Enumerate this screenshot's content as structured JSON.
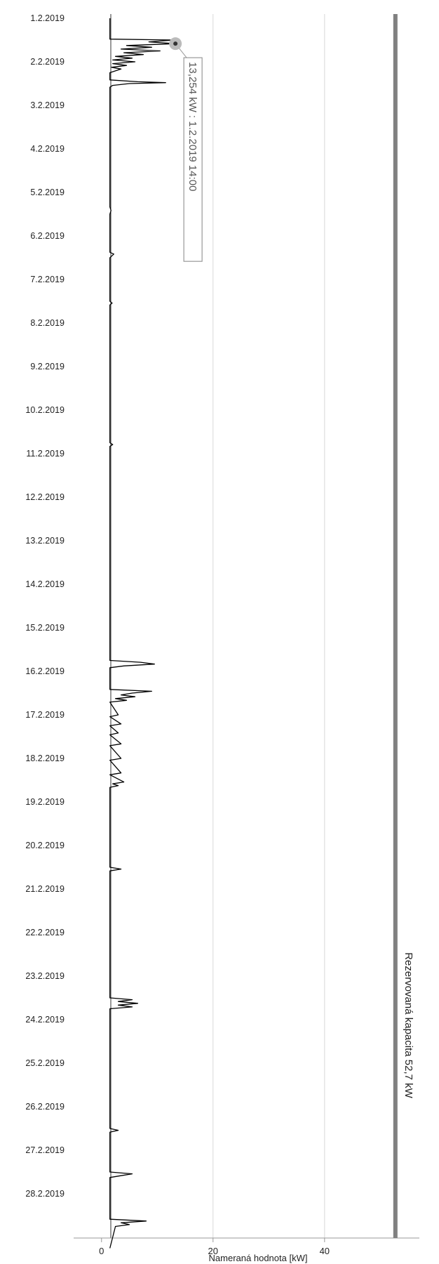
{
  "chart_data": {
    "type": "line",
    "orientation": "rotated (time on vertical axis, value on horizontal axis)",
    "title": "",
    "xlabel": "Nameraná hodnota [kW]",
    "x_ticks": [
      0,
      20,
      40
    ],
    "x_tick_labels": [
      "0",
      "20",
      "40"
    ],
    "xlim": [
      -5,
      57
    ],
    "date_ticks": [
      "1.2.2019",
      "2.2.2019",
      "3.2.2019",
      "4.2.2019",
      "5.2.2019",
      "6.2.2019",
      "7.2.2019",
      "8.2.2019",
      "9.2.2019",
      "10.2.2019",
      "11.2.2019",
      "12.2.2019",
      "13.2.2019",
      "14.2.2019",
      "15.2.2019",
      "16.2.2019",
      "17.2.2019",
      "18.2.2019",
      "19.2.2019",
      "20.2.2019",
      "21.2.2019",
      "22.2.2019",
      "23.2.2019",
      "24.2.2019",
      "25.2.2019",
      "26.2.2019",
      "27.2.2019",
      "28.2.2019"
    ],
    "date_range": [
      "1.2.2019 00:00",
      "1.3.2019 06:00"
    ],
    "grid": "vertical lines at x ticks",
    "reserved_capacity": {
      "value": 52.7,
      "label": "Rezervovaná kapacita 52,7 kW",
      "color": "#808080"
    },
    "tooltip": {
      "value": 13.254,
      "label": "13,254 kW : 1.2.2019 14:00"
    },
    "series": [
      {
        "color": "#000000",
        "points": [
          [
            "1.2.2019 00:00",
            1.5
          ],
          [
            "1.2.2019 11:30",
            1.5
          ],
          [
            "1.2.2019 12:00",
            13.0
          ],
          [
            "1.2.2019 13:00",
            8.5
          ],
          [
            "1.2.2019 14:00",
            13.254
          ],
          [
            "1.2.2019 15:00",
            4.5
          ],
          [
            "1.2.2019 16:00",
            9.0
          ],
          [
            "1.2.2019 17:00",
            3.5
          ],
          [
            "1.2.2019 18:00",
            10.5
          ],
          [
            "1.2.2019 19:00",
            4.0
          ],
          [
            "1.2.2019 20:00",
            7.5
          ],
          [
            "1.2.2019 21:00",
            2.5
          ],
          [
            "1.2.2019 22:00",
            5.5
          ],
          [
            "1.2.2019 23:00",
            2.0
          ],
          [
            "2.2.2019 00:00",
            6.0
          ],
          [
            "2.2.2019 01:00",
            2.0
          ],
          [
            "2.2.2019 02:00",
            4.5
          ],
          [
            "2.2.2019 03:00",
            1.8
          ],
          [
            "2.2.2019 04:00",
            3.5
          ],
          [
            "2.2.2019 06:00",
            1.5
          ],
          [
            "2.2.2019 10:00",
            1.5
          ],
          [
            "2.2.2019 11:00",
            6.5
          ],
          [
            "2.2.2019 11:30",
            11.5
          ],
          [
            "2.2.2019 12:00",
            5.0
          ],
          [
            "2.2.2019 13:00",
            2.0
          ],
          [
            "2.2.2019 14:00",
            1.5
          ],
          [
            "5.2.2019 08:00",
            1.5
          ],
          [
            "5.2.2019 10:00",
            1.7
          ],
          [
            "5.2.2019 12:00",
            1.5
          ],
          [
            "6.2.2019 09:00",
            1.5
          ],
          [
            "6.2.2019 10:00",
            2.2
          ],
          [
            "6.2.2019 12:00",
            1.5
          ],
          [
            "7.2.2019 12:00",
            1.5
          ],
          [
            "7.2.2019 13:00",
            1.9
          ],
          [
            "7.2.2019 14:00",
            1.5
          ],
          [
            "10.2.2019 18:00",
            1.5
          ],
          [
            "10.2.2019 19:00",
            2.0
          ],
          [
            "10.2.2019 20:00",
            1.5
          ],
          [
            "15.2.2019 18:00",
            1.5
          ],
          [
            "15.2.2019 19:00",
            7.0
          ],
          [
            "15.2.2019 20:00",
            9.5
          ],
          [
            "15.2.2019 21:00",
            4.0
          ],
          [
            "15.2.2019 22:00",
            1.5
          ],
          [
            "16.2.2019 10:00",
            1.5
          ],
          [
            "16.2.2019 11:00",
            9.0
          ],
          [
            "16.2.2019 12:00",
            5.5
          ],
          [
            "16.2.2019 13:00",
            3.5
          ],
          [
            "16.2.2019 14:00",
            6.0
          ],
          [
            "16.2.2019 15:00",
            2.5
          ],
          [
            "16.2.2019 16:00",
            4.5
          ],
          [
            "16.2.2019 17:00",
            1.5
          ],
          [
            "17.2.2019 00:00",
            3.0
          ],
          [
            "17.2.2019 01:00",
            1.5
          ],
          [
            "17.2.2019 05:00",
            3.5
          ],
          [
            "17.2.2019 06:00",
            1.5
          ],
          [
            "17.2.2019 10:00",
            3.0
          ],
          [
            "17.2.2019 11:00",
            1.5
          ],
          [
            "17.2.2019 16:00",
            3.5
          ],
          [
            "17.2.2019 17:00",
            1.5
          ],
          [
            "18.2.2019 00:00",
            3.5
          ],
          [
            "18.2.2019 01:00",
            1.5
          ],
          [
            "18.2.2019 08:00",
            3.5
          ],
          [
            "18.2.2019 09:00",
            1.5
          ],
          [
            "18.2.2019 13:00",
            4.0
          ],
          [
            "18.2.2019 14:00",
            2.0
          ],
          [
            "18.2.2019 15:00",
            3.0
          ],
          [
            "18.2.2019 16:00",
            1.5
          ],
          [
            "20.2.2019 12:00",
            1.5
          ],
          [
            "20.2.2019 13:00",
            3.5
          ],
          [
            "20.2.2019 14:00",
            1.5
          ],
          [
            "23.2.2019 12:00",
            1.5
          ],
          [
            "23.2.2019 13:00",
            5.5
          ],
          [
            "23.2.2019 14:00",
            3.0
          ],
          [
            "23.2.2019 15:00",
            6.5
          ],
          [
            "23.2.2019 16:00",
            3.0
          ],
          [
            "23.2.2019 17:00",
            5.5
          ],
          [
            "23.2.2019 18:00",
            1.5
          ],
          [
            "26.2.2019 12:00",
            1.5
          ],
          [
            "26.2.2019 13:00",
            3.0
          ],
          [
            "26.2.2019 14:00",
            1.5
          ],
          [
            "27.2.2019 12:00",
            1.5
          ],
          [
            "27.2.2019 13:00",
            5.5
          ],
          [
            "27.2.2019 14:00",
            3.5
          ],
          [
            "27.2.2019 15:00",
            1.5
          ],
          [
            "28.2.2019 14:00",
            1.5
          ],
          [
            "28.2.2019 15:00",
            8.0
          ],
          [
            "28.2.2019 16:00",
            3.5
          ],
          [
            "28.2.2019 17:00",
            5.0
          ],
          [
            "28.2.2019 18:00",
            2.5
          ],
          [
            "1.3.2019 06:00",
            1.5
          ]
        ]
      }
    ]
  }
}
